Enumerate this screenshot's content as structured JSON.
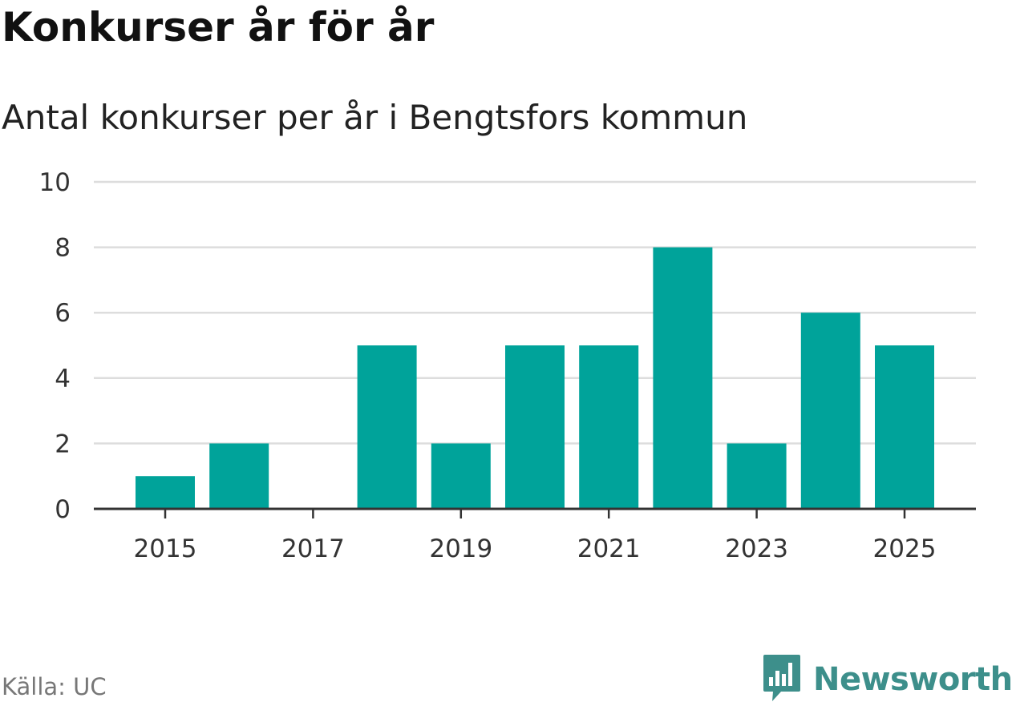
{
  "header": {
    "title": "Konkurser år för år",
    "subtitle": "Antal konkurser per år i Bengtsfors kommun"
  },
  "footer": {
    "source": "Källa: UC",
    "brand": "Newsworthy",
    "brand_icon": "bar-chart-speech-bubble-icon"
  },
  "colors": {
    "bar": "#00a39a",
    "grid": "#dddddd",
    "axis": "#333333",
    "brand": "#3d8f8b"
  },
  "chart_data": {
    "type": "bar",
    "categories": [
      2015,
      2016,
      2017,
      2018,
      2019,
      2020,
      2021,
      2022,
      2023,
      2024,
      2025
    ],
    "values": [
      1,
      2,
      0,
      5,
      2,
      5,
      5,
      8,
      2,
      6,
      5
    ],
    "x_tick_labels": [
      "2015",
      "2017",
      "2019",
      "2021",
      "2023",
      "2025"
    ],
    "y_ticks": [
      0,
      2,
      4,
      6,
      8,
      10
    ],
    "ylim": [
      0,
      10
    ],
    "title": "Konkurser år för år",
    "subtitle": "Antal konkurser per år i Bengtsfors kommun",
    "xlabel": "",
    "ylabel": "",
    "grid": true,
    "legend": "none"
  }
}
